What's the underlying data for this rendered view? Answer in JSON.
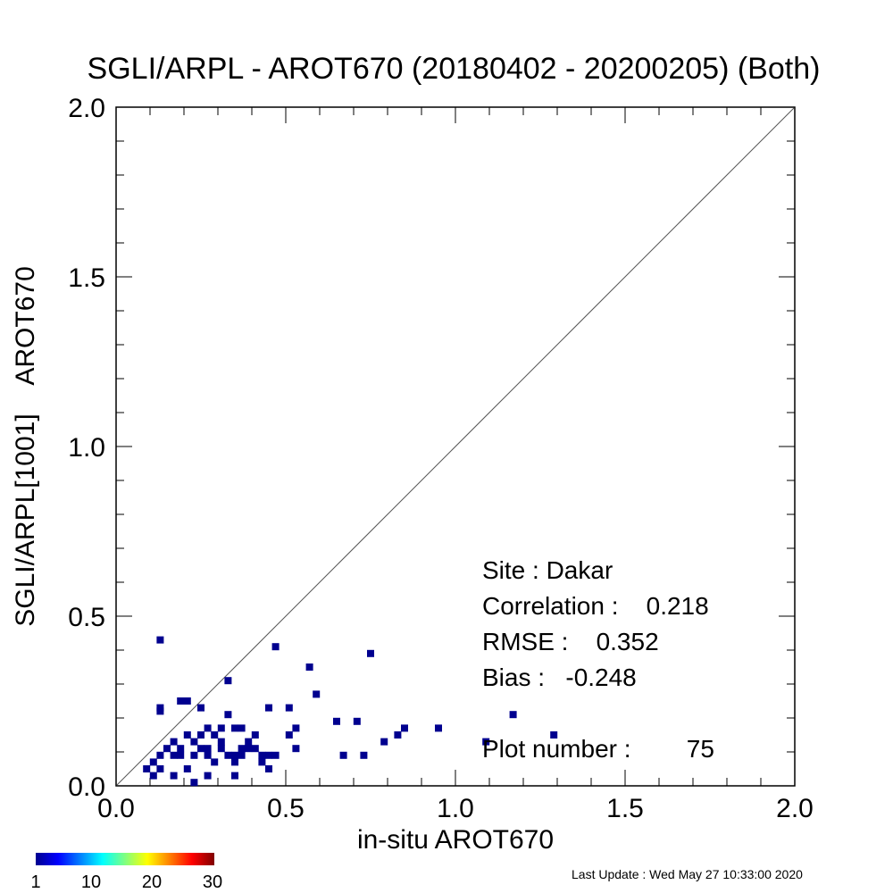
{
  "chart_data": {
    "type": "scatter",
    "title": "SGLI/ARPL - AROT670 (20180402 - 20200205) (Both)",
    "xlabel": "in-situ AROT670",
    "ylabel": "SGLI/ARPL[1001]    AROT670",
    "xlim": [
      0.0,
      2.0
    ],
    "ylim": [
      0.0,
      2.0
    ],
    "x_ticks": [
      "0.0",
      "0.5",
      "1.0",
      "1.5",
      "2.0"
    ],
    "y_ticks": [
      "0.0",
      "0.5",
      "1.0",
      "1.5",
      "2.0"
    ],
    "reference_line": "1:1",
    "marker_color": "#00008f",
    "stats": {
      "site": "Site : Dakar",
      "correlation": "Correlation :    0.218",
      "rmse": "RMSE :    0.352",
      "bias": "Bias :   -0.248",
      "plot_number": "Plot number :        75"
    },
    "colorbar": {
      "min_label": "1",
      "labels": [
        "10",
        "20"
      ],
      "max_label": "30",
      "colors": [
        "#00008f",
        "#0000ff",
        "#0080ff",
        "#00ffff",
        "#80ff80",
        "#ffff00",
        "#ff8000",
        "#ff0000",
        "#800000"
      ]
    },
    "points": [
      [
        0.09,
        0.05
      ],
      [
        0.11,
        0.07
      ],
      [
        0.11,
        0.03
      ],
      [
        0.13,
        0.05
      ],
      [
        0.13,
        0.09
      ],
      [
        0.13,
        0.22
      ],
      [
        0.13,
        0.23
      ],
      [
        0.13,
        0.43
      ],
      [
        0.15,
        0.11
      ],
      [
        0.17,
        0.13
      ],
      [
        0.17,
        0.09
      ],
      [
        0.17,
        0.03
      ],
      [
        0.19,
        0.11
      ],
      [
        0.19,
        0.09
      ],
      [
        0.19,
        0.25
      ],
      [
        0.21,
        0.25
      ],
      [
        0.21,
        0.15
      ],
      [
        0.21,
        0.05
      ],
      [
        0.23,
        0.01
      ],
      [
        0.23,
        0.09
      ],
      [
        0.23,
        0.13
      ],
      [
        0.25,
        0.11
      ],
      [
        0.25,
        0.15
      ],
      [
        0.25,
        0.23
      ],
      [
        0.27,
        0.17
      ],
      [
        0.27,
        0.11
      ],
      [
        0.27,
        0.03
      ],
      [
        0.27,
        0.09
      ],
      [
        0.29,
        0.15
      ],
      [
        0.29,
        0.07
      ],
      [
        0.31,
        0.17
      ],
      [
        0.31,
        0.13
      ],
      [
        0.31,
        0.11
      ],
      [
        0.33,
        0.31
      ],
      [
        0.33,
        0.21
      ],
      [
        0.33,
        0.09
      ],
      [
        0.35,
        0.17
      ],
      [
        0.35,
        0.07
      ],
      [
        0.35,
        0.03
      ],
      [
        0.35,
        0.09
      ],
      [
        0.37,
        0.11
      ],
      [
        0.37,
        0.17
      ],
      [
        0.37,
        0.09
      ],
      [
        0.39,
        0.13
      ],
      [
        0.39,
        0.11
      ],
      [
        0.41,
        0.11
      ],
      [
        0.41,
        0.15
      ],
      [
        0.43,
        0.09
      ],
      [
        0.43,
        0.07
      ],
      [
        0.45,
        0.09
      ],
      [
        0.45,
        0.23
      ],
      [
        0.45,
        0.05
      ],
      [
        0.47,
        0.41
      ],
      [
        0.47,
        0.09
      ],
      [
        0.51,
        0.15
      ],
      [
        0.51,
        0.23
      ],
      [
        0.53,
        0.11
      ],
      [
        0.53,
        0.17
      ],
      [
        0.57,
        0.35
      ],
      [
        0.59,
        0.27
      ],
      [
        0.65,
        0.19
      ],
      [
        0.67,
        0.09
      ],
      [
        0.71,
        0.19
      ],
      [
        0.73,
        0.09
      ],
      [
        0.75,
        0.39
      ],
      [
        0.79,
        0.13
      ],
      [
        0.83,
        0.15
      ],
      [
        0.85,
        0.17
      ],
      [
        0.95,
        0.17
      ],
      [
        1.09,
        0.13
      ],
      [
        1.17,
        0.21
      ],
      [
        1.29,
        0.15
      ]
    ]
  },
  "footer": {
    "last_update": "Last Update : Wed May 27 10:33:00 2020"
  }
}
